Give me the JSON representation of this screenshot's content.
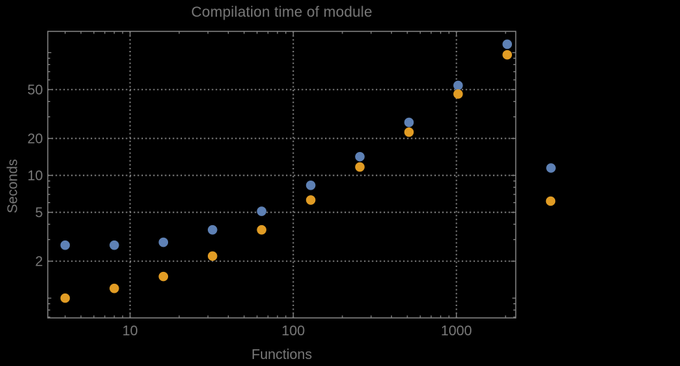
{
  "title": "Compilation time of module",
  "chart_data": {
    "type": "scatter",
    "title": "Compilation time of module",
    "xlabel": "Functions",
    "ylabel": "Seconds",
    "xscale": "log",
    "yscale": "log",
    "xlim": [
      3.13,
      2310
    ],
    "ylim": [
      0.69,
      149
    ],
    "grid": "dotted",
    "legend_position": "right-outside",
    "x": [
      4,
      8,
      16,
      32,
      64,
      128,
      256,
      512,
      1024,
      2048
    ],
    "series": [
      {
        "name": "series-1-blue",
        "color": "#5E81B5",
        "values": [
          2.7,
          2.7,
          2.85,
          3.6,
          5.1,
          8.3,
          14.2,
          27,
          54,
          117
        ]
      },
      {
        "name": "series-2-orange",
        "color": "#E19C24",
        "values": [
          1.0,
          1.2,
          1.5,
          2.2,
          3.6,
          6.3,
          11.7,
          22.5,
          46,
          96
        ]
      }
    ],
    "x_ticks": {
      "major": [
        {
          "v": 10,
          "label": "10"
        },
        {
          "v": 100,
          "label": "100"
        },
        {
          "v": 1000,
          "label": "1000"
        }
      ],
      "minor": [
        4,
        5,
        6,
        7,
        8,
        9,
        20,
        30,
        40,
        50,
        60,
        70,
        80,
        90,
        200,
        300,
        400,
        500,
        600,
        700,
        800,
        900,
        2000
      ]
    },
    "y_ticks": {
      "major": [
        {
          "v": 2,
          "label": "2"
        },
        {
          "v": 5,
          "label": "5"
        },
        {
          "v": 10,
          "label": "10"
        },
        {
          "v": 20,
          "label": "20"
        },
        {
          "v": 50,
          "label": "50"
        }
      ],
      "medium": [
        1,
        100
      ],
      "minor": [
        0.7,
        0.8,
        0.9,
        3,
        4,
        6,
        7,
        8,
        9,
        30,
        40,
        60,
        70,
        80,
        90
      ]
    }
  },
  "legend": {
    "markers": [
      {
        "name": "legend-marker-series-1",
        "color": "#5E81B5"
      },
      {
        "name": "legend-marker-series-2",
        "color": "#E19C24"
      }
    ]
  },
  "style": {
    "background": "#000000",
    "frame_color": "#848484",
    "grid_color": "#8A8A8A",
    "text_color": "#787878",
    "point_radius": 6.8
  }
}
